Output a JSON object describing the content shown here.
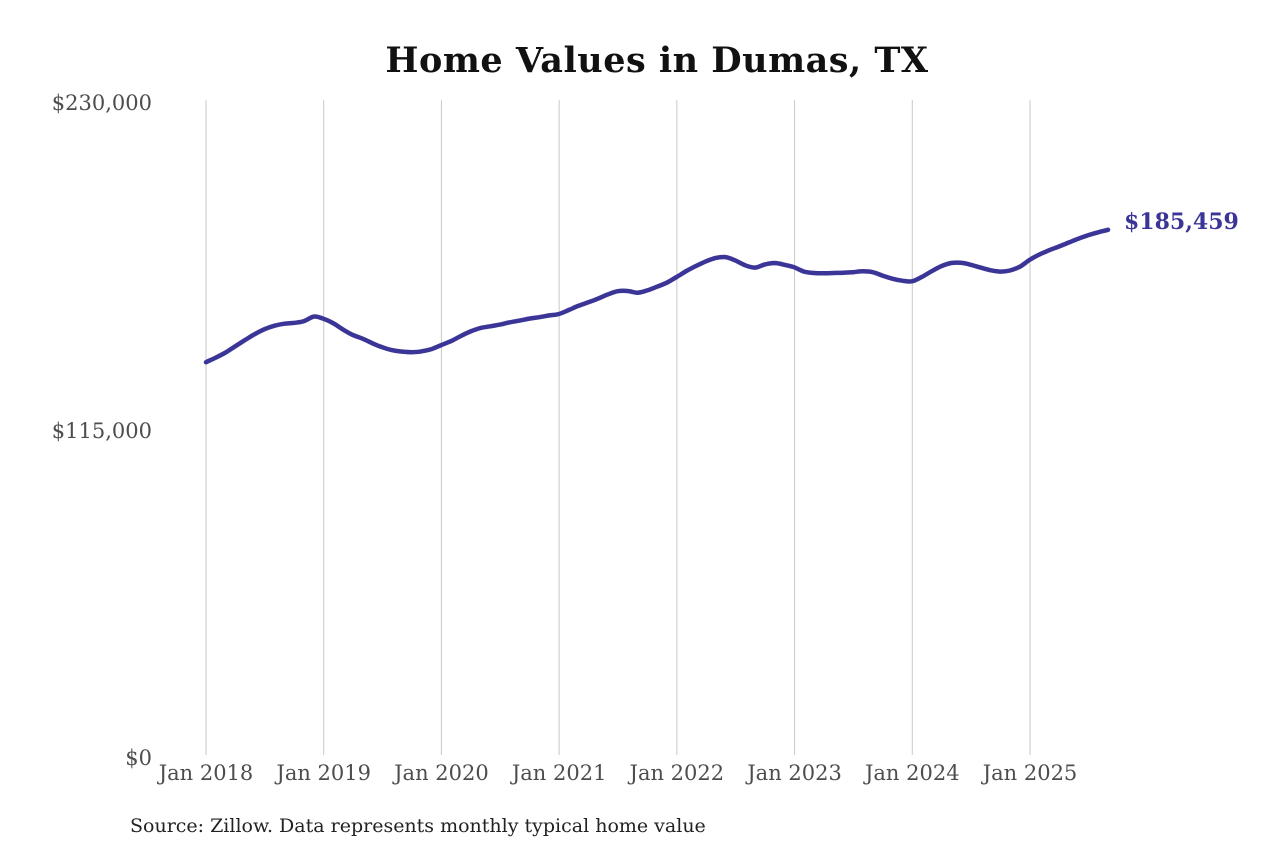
{
  "chart_data": {
    "type": "line",
    "title": "Home Values in Dumas, TX",
    "series_name": "Monthly typical home value (USD)",
    "frequency": "monthly",
    "x_start_month": "Jan 2018",
    "x_end_month": "Sep 2025",
    "values": [
      139000,
      140600,
      142400,
      144600,
      146800,
      148900,
      150600,
      151800,
      152500,
      152800,
      153400,
      155000,
      154200,
      152600,
      150400,
      148500,
      147200,
      145600,
      144200,
      143200,
      142700,
      142500,
      142800,
      143600,
      145000,
      146400,
      148200,
      149800,
      151000,
      151600,
      152200,
      153000,
      153600,
      154300,
      154800,
      155400,
      155900,
      157300,
      158800,
      160000,
      161300,
      162800,
      163900,
      164000,
      163400,
      164200,
      165500,
      166900,
      168900,
      171000,
      172800,
      174400,
      175600,
      175900,
      174700,
      173000,
      172200,
      173300,
      173800,
      173200,
      172300,
      170800,
      170300,
      170200,
      170300,
      170400,
      170600,
      170900,
      170600,
      169400,
      168300,
      167600,
      167400,
      168900,
      170900,
      172700,
      173800,
      173900,
      173200,
      172200,
      171300,
      170800,
      171200,
      172500,
      174900,
      176800,
      178300,
      179600,
      181000,
      182400,
      183600,
      184600,
      185459
    ],
    "final_value": 185459,
    "final_value_label": "$185,459",
    "ylim": [
      0,
      230000
    ],
    "y_ticks": [
      {
        "value": 0,
        "label": "$0"
      },
      {
        "value": 115000,
        "label": "$115,000"
      },
      {
        "value": 230000,
        "label": "$230,000"
      }
    ],
    "x_ticks": [
      "Jan 2018",
      "Jan 2019",
      "Jan 2020",
      "Jan 2021",
      "Jan 2022",
      "Jan 2023",
      "Jan 2024",
      "Jan 2025"
    ],
    "grid": "vertical-year-lines-only",
    "legend": "none",
    "source": "Source: Zillow. Data represents monthly typical home value",
    "colors": {
      "line": "#3b3597",
      "final_label": "#3b3597",
      "grid": "#c8c8c8",
      "axis_text": "#4d4d4d",
      "title_text": "#111111",
      "source_text": "#222222"
    }
  }
}
